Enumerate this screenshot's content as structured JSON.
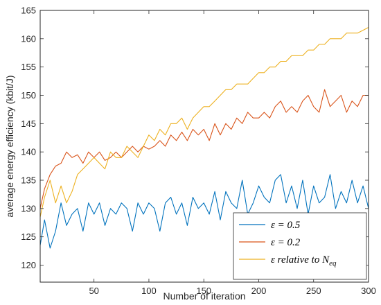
{
  "chart_data": {
    "type": "line",
    "title": "",
    "xlabel": "Number of iteration",
    "ylabel": "average energy efficiency (kbit/J)",
    "xlim": [
      1,
      300
    ],
    "ylim": [
      117,
      165
    ],
    "xticks": [
      50,
      100,
      150,
      200,
      250,
      300
    ],
    "xtick_labels": [
      "50",
      "100",
      "150",
      "200",
      "250",
      "300"
    ],
    "yticks": [
      120,
      125,
      130,
      135,
      140,
      145,
      150,
      155,
      160,
      165
    ],
    "ytick_labels": [
      "120",
      "125",
      "130",
      "135",
      "140",
      "145",
      "150",
      "155",
      "160",
      "165"
    ],
    "grid": false,
    "legend_position": "bottom-right",
    "series": [
      {
        "name": "ε = 0.5",
        "color": "#0072BD",
        "x": [
          1,
          5,
          10,
          15,
          20,
          25,
          30,
          35,
          40,
          45,
          50,
          55,
          60,
          65,
          70,
          75,
          80,
          85,
          90,
          95,
          100,
          105,
          110,
          115,
          120,
          125,
          130,
          135,
          140,
          145,
          150,
          155,
          160,
          165,
          170,
          175,
          180,
          185,
          190,
          195,
          200,
          205,
          210,
          215,
          220,
          225,
          230,
          235,
          240,
          245,
          250,
          255,
          260,
          265,
          270,
          275,
          280,
          285,
          290,
          295,
          300
        ],
        "values": [
          123.5,
          128,
          123,
          126,
          131,
          127,
          129,
          130,
          126,
          131,
          129,
          131,
          127,
          130,
          129,
          131,
          130,
          126,
          131,
          129,
          131,
          130,
          126,
          131,
          132,
          129,
          131,
          127,
          132,
          130,
          131,
          129,
          133,
          128,
          133,
          131,
          130,
          135,
          129,
          131,
          134,
          132,
          131,
          135,
          136,
          131,
          134,
          130,
          135,
          129,
          134,
          131,
          132,
          136,
          130,
          133,
          131,
          135,
          131,
          134,
          130
        ]
      },
      {
        "name": "ε = 0.2",
        "color": "#D95319",
        "x": [
          1,
          5,
          10,
          15,
          20,
          25,
          30,
          35,
          40,
          45,
          50,
          55,
          60,
          65,
          70,
          75,
          80,
          85,
          90,
          95,
          100,
          105,
          110,
          115,
          120,
          125,
          130,
          135,
          140,
          145,
          150,
          155,
          160,
          165,
          170,
          175,
          180,
          185,
          190,
          195,
          200,
          205,
          210,
          215,
          220,
          225,
          230,
          235,
          240,
          245,
          250,
          255,
          260,
          265,
          270,
          275,
          280,
          285,
          290,
          295,
          300
        ],
        "values": [
          130,
          133.5,
          136,
          137.5,
          138,
          140,
          139,
          139.5,
          138,
          140,
          139,
          140,
          138.5,
          139,
          140,
          139,
          140,
          141,
          140,
          141,
          140.5,
          141,
          142,
          141,
          143,
          142,
          143.5,
          142,
          144,
          143,
          144,
          142,
          145,
          143,
          145,
          144,
          146,
          145,
          147,
          146,
          146,
          147,
          146,
          148,
          149,
          147,
          148,
          147,
          149,
          150,
          148,
          147,
          151,
          148,
          149,
          150,
          147,
          149,
          148,
          150,
          150
        ]
      },
      {
        "name": "ε relative to N",
        "name_sub": "eq",
        "color": "#EDB120",
        "x": [
          1,
          5,
          10,
          15,
          20,
          25,
          30,
          35,
          40,
          45,
          50,
          55,
          60,
          65,
          70,
          75,
          80,
          85,
          90,
          95,
          100,
          105,
          110,
          115,
          120,
          125,
          130,
          135,
          140,
          145,
          150,
          155,
          160,
          165,
          170,
          175,
          180,
          185,
          190,
          195,
          200,
          205,
          210,
          215,
          220,
          225,
          230,
          235,
          240,
          245,
          250,
          255,
          260,
          265,
          270,
          275,
          280,
          285,
          290,
          295,
          300
        ],
        "values": [
          128.5,
          132,
          135,
          131,
          134,
          131,
          133,
          136,
          137,
          138,
          139,
          138,
          137,
          140,
          139,
          139,
          141,
          140,
          139,
          141,
          143,
          142,
          144,
          143,
          145,
          145,
          146,
          144,
          146,
          147,
          148,
          148,
          149,
          150,
          151,
          151,
          152,
          152,
          152,
          153,
          154,
          154,
          155,
          155,
          156,
          156,
          157,
          157,
          157,
          158,
          158,
          159,
          159,
          160,
          160,
          160,
          161,
          161,
          161,
          161.5,
          162
        ]
      }
    ],
    "legend": [
      "ε = 0.5",
      "ε = 0.2",
      "ε relative to N_eq"
    ]
  }
}
